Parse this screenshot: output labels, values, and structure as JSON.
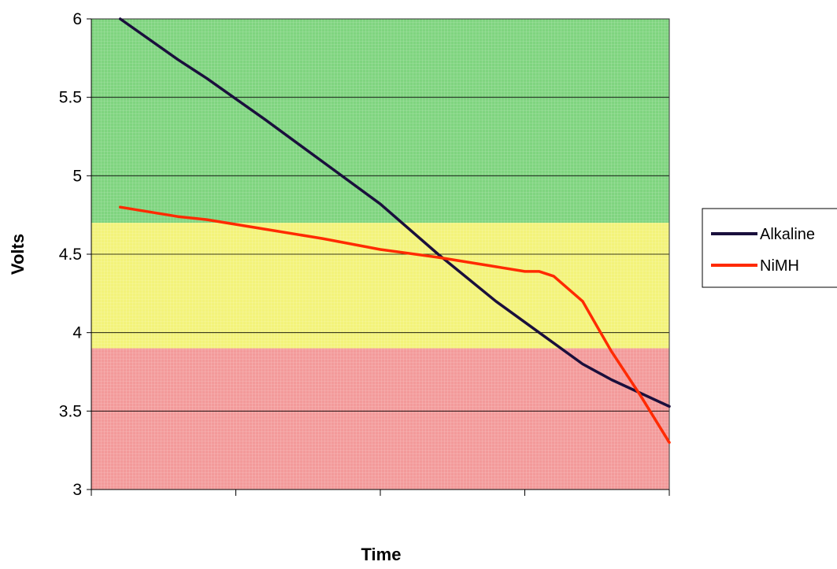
{
  "chart_data": {
    "type": "line",
    "title": "",
    "xlabel": "Time",
    "ylabel": "Volts",
    "ylim": [
      3,
      6
    ],
    "yticks": [
      "3",
      "3.5",
      "4",
      "4.5",
      "5",
      "5.5",
      "6"
    ],
    "xlim": [
      0,
      4
    ],
    "x_tick_labels_shown": false,
    "grid": "horizontal",
    "legend_position": "right",
    "bands": [
      {
        "from": 4.7,
        "to": 6.0,
        "color": "#7fd47f"
      },
      {
        "from": 3.9,
        "to": 4.7,
        "color": "#f3f37a"
      },
      {
        "from": 3.0,
        "to": 3.9,
        "color": "#f39a9a"
      }
    ],
    "series": [
      {
        "name": "Alkaline",
        "color": "#1a0f3c",
        "x": [
          0.2,
          0.6,
          0.8,
          1.2,
          1.6,
          2.0,
          2.4,
          2.8,
          3.1,
          3.4,
          3.6,
          4.0
        ],
        "y": [
          6.0,
          5.74,
          5.62,
          5.36,
          5.09,
          4.82,
          4.5,
          4.2,
          4.0,
          3.8,
          3.7,
          3.53
        ]
      },
      {
        "name": "NiMH",
        "color": "#ff2a00",
        "x": [
          0.2,
          0.6,
          0.8,
          1.2,
          1.6,
          2.0,
          2.4,
          2.8,
          3.0,
          3.1,
          3.2,
          3.4,
          3.6,
          3.8,
          4.0
        ],
        "y": [
          4.8,
          4.74,
          4.72,
          4.66,
          4.6,
          4.53,
          4.48,
          4.42,
          4.39,
          4.39,
          4.36,
          4.2,
          3.88,
          3.6,
          3.3
        ]
      }
    ]
  }
}
